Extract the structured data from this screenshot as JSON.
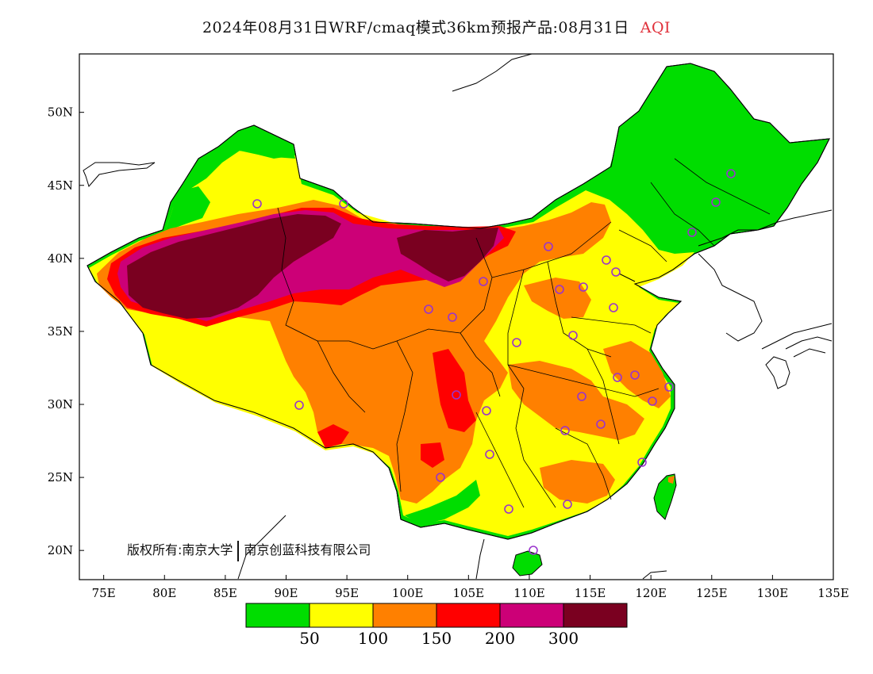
{
  "title": {
    "main": "2024年08月31日WRF/cmaq模式36km预报产品:08月31日",
    "variable": "AQI"
  },
  "map": {
    "lon_ticks": [
      "75E",
      "80E",
      "85E",
      "90E",
      "95E",
      "100E",
      "105E",
      "110E",
      "115E",
      "120E",
      "125E",
      "130E",
      "135E"
    ],
    "lat_ticks": [
      "20N",
      "25N",
      "30N",
      "35N",
      "40N",
      "45N",
      "50N"
    ],
    "lon_range": [
      73,
      135
    ],
    "lat_range": [
      18,
      54
    ]
  },
  "legend": {
    "colors": [
      "#00dd00",
      "#ffff00",
      "#ff8000",
      "#ff0000",
      "#cc0077",
      "#7a0020"
    ],
    "labels": [
      "50",
      "100",
      "150",
      "200",
      "300"
    ]
  },
  "copyright": {
    "left": "版权所有:南京大学",
    "right": "南京创蓝科技有限公司"
  },
  "colors": {
    "good": "#00dd00",
    "moderate": "#ffff00",
    "sensitive": "#ff8000",
    "unhealthy": "#ff0000",
    "very_unhealthy": "#cc0077",
    "hazardous": "#7a0020",
    "station_marker": "#9933cc",
    "title_accent": "#e0303a"
  }
}
